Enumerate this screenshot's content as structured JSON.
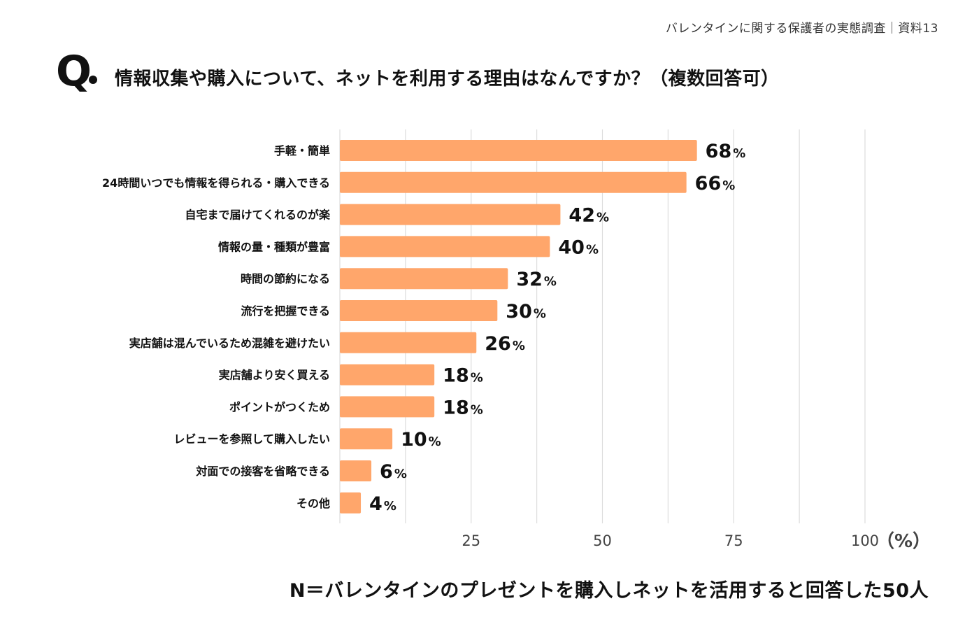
{
  "header": {
    "note": "バレンタインに関する保護者の実態調査｜資料13"
  },
  "question": {
    "mark": "Q",
    "text": "情報収集や購入について、ネットを利用する理由はなんですか？（複数回答可）"
  },
  "colors": {
    "bar": "#FFA66B",
    "grid": "#DDDDDD",
    "text": "#111111",
    "axis_text": "#444444"
  },
  "chart_data": {
    "type": "bar",
    "orientation": "horizontal",
    "title": "情報収集や購入について、ネットを利用する理由はなんですか？（複数回答可）",
    "categories": [
      "手軽・簡単",
      "24時間いつでも情報を得られる・購入できる",
      "自宅まで届けてくれるのが楽",
      "情報の量・種類が豊富",
      "時間の節約になる",
      "流行を把握できる",
      "実店舗は混んでいるため混雑を避けたい",
      "実店舗より安く買える",
      "ポイントがつくため",
      "レビューを参照して購入したい",
      "対面での接客を省略できる",
      "その他"
    ],
    "values": [
      68,
      66,
      42,
      40,
      32,
      30,
      26,
      18,
      18,
      10,
      6,
      4
    ],
    "value_suffix": "%",
    "xlim": [
      0,
      100
    ],
    "xticks": [
      25,
      50,
      75,
      100
    ],
    "xlabel": "（%）",
    "ylabel": "",
    "grid": true,
    "minor_grid_step": 12.5,
    "legend": "none"
  },
  "footer": {
    "note": "N＝バレンタインのプレゼントを購入しネットを活用すると回答した50人"
  }
}
